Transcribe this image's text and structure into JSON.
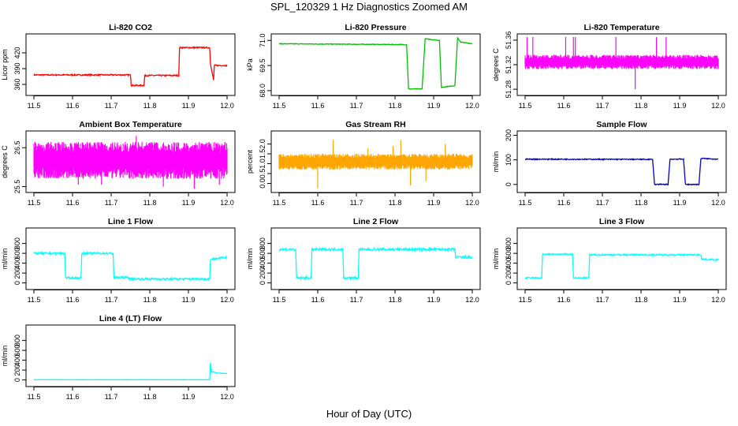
{
  "figure": {
    "title": "SPL_120329  1 Hz Diagnostics Zoomed AM",
    "xlabel": "Hour of Day (UTC)"
  },
  "chart_data": [
    {
      "type": "line",
      "title": "Li-820 CO2",
      "ylabel": "Licor ppm",
      "color": "#ff0000",
      "xlim": [
        11.5,
        12.0
      ],
      "ylim": [
        345,
        450
      ],
      "xticks": [
        "11.5",
        "11.6",
        "11.7",
        "11.8",
        "11.9",
        "12.0"
      ],
      "yticks": [
        {
          "v": 360,
          "label": "360"
        },
        {
          "v": 390,
          "label": "390"
        },
        {
          "v": 420,
          "label": "420"
        }
      ],
      "noise": 1.2,
      "series": [
        {
          "x": [
            11.5,
            11.75,
            11.752,
            11.785,
            11.787,
            11.875,
            11.877,
            11.955,
            11.957,
            11.965,
            11.967,
            12.0
          ],
          "y": [
            378,
            378,
            358,
            358,
            377,
            377,
            430,
            430,
            400,
            368,
            396,
            396
          ]
        }
      ]
    },
    {
      "type": "line",
      "title": "Li-820 Pressure",
      "ylabel": "kPa",
      "color": "#00c000",
      "xlim": [
        11.5,
        12.0
      ],
      "ylim": [
        67.9,
        71.2
      ],
      "xticks": [
        "11.5",
        "11.6",
        "11.7",
        "11.8",
        "11.9",
        "12.0"
      ],
      "yticks": [
        {
          "v": 68.0,
          "label": "68.0"
        },
        {
          "v": 69.5,
          "label": "69.5"
        },
        {
          "v": 71.0,
          "label": "71.0"
        }
      ],
      "noise": 0.02,
      "series": [
        {
          "x": [
            11.5,
            11.83,
            11.835,
            11.87,
            11.878,
            11.915,
            11.92,
            11.955,
            11.962,
            11.97,
            12.0
          ],
          "y": [
            70.8,
            70.75,
            68.1,
            68.1,
            71.1,
            71.0,
            68.2,
            68.3,
            71.15,
            70.9,
            70.8
          ]
        }
      ]
    },
    {
      "type": "band",
      "title": "Li-820 Temperature",
      "ylabel": "degrees C",
      "color": "#ff00ff",
      "xlim": [
        11.5,
        12.0
      ],
      "ylim": [
        51.275,
        51.365
      ],
      "xticks": [
        "11.5",
        "11.6",
        "11.7",
        "11.8",
        "11.9",
        "12.0"
      ],
      "yticks": [
        {
          "v": 51.28,
          "label": "51.28"
        },
        {
          "v": 51.32,
          "label": "51.32"
        },
        {
          "v": 51.36,
          "label": "51.36"
        }
      ],
      "band": [
        51.313,
        51.336
      ],
      "spikes": [
        {
          "x": 11.505,
          "y": 51.365
        },
        {
          "x": 11.52,
          "y": 51.365
        },
        {
          "x": 11.605,
          "y": 51.365
        },
        {
          "x": 11.625,
          "y": 51.365
        },
        {
          "x": 11.63,
          "y": 51.365
        },
        {
          "x": 11.735,
          "y": 51.365
        },
        {
          "x": 11.84,
          "y": 51.365
        },
        {
          "x": 11.865,
          "y": 51.365
        },
        {
          "x": 11.785,
          "y": 51.28
        }
      ]
    },
    {
      "type": "band",
      "title": "Ambient Box Temperature",
      "ylabel": "degrees C",
      "color": "#ff00ff",
      "xlim": [
        11.5,
        12.0
      ],
      "ylim": [
        25.43,
        26.85
      ],
      "xticks": [
        "11.5",
        "11.6",
        "11.7",
        "11.8",
        "11.9",
        "12.0"
      ],
      "yticks": [
        {
          "v": 25.5,
          "label": "25.5"
        },
        {
          "v": 26.5,
          "label": "26.5"
        }
      ],
      "band": [
        25.7,
        26.65
      ],
      "spikes": [
        {
          "x": 11.765,
          "y": 26.8
        },
        {
          "x": 11.615,
          "y": 25.55
        },
        {
          "x": 11.675,
          "y": 25.55
        },
        {
          "x": 11.835,
          "y": 25.5
        },
        {
          "x": 11.915,
          "y": 25.45
        },
        {
          "x": 11.98,
          "y": 25.55
        }
      ]
    },
    {
      "type": "band",
      "title": "Gas Stream RH",
      "ylabel": "percent",
      "color": "#ffa500",
      "xlim": [
        11.5,
        12.0
      ],
      "ylim": [
        -0.3,
        2.5
      ],
      "xticks": [
        "11.5",
        "11.6",
        "11.7",
        "11.8",
        "11.9",
        "12.0"
      ],
      "yticks": [
        {
          "v": 0.0,
          "label": "0.0"
        },
        {
          "v": 0.5,
          "label": "0.5"
        },
        {
          "v": 1.0,
          "label": "1.0"
        },
        {
          "v": 1.5,
          "label": "1.5"
        },
        {
          "v": 2.0,
          "label": "2.0"
        }
      ],
      "band": [
        0.7,
        1.5
      ],
      "spikes": [
        {
          "x": 11.6,
          "y": -0.25
        },
        {
          "x": 11.64,
          "y": 2.2
        },
        {
          "x": 11.73,
          "y": 1.8
        },
        {
          "x": 11.815,
          "y": 2.2
        },
        {
          "x": 11.84,
          "y": -0.1
        },
        {
          "x": 11.88,
          "y": 0.1
        },
        {
          "x": 11.93,
          "y": 2.0
        },
        {
          "x": 11.795,
          "y": 1.9
        }
      ]
    },
    {
      "type": "line",
      "title": "Sample Flow",
      "ylabel": "ml/min",
      "color": "#0000cd",
      "xlim": [
        11.5,
        12.0
      ],
      "ylim": [
        -20,
        205
      ],
      "xticks": [
        "11.5",
        "11.6",
        "11.7",
        "11.8",
        "11.9",
        "12.0"
      ],
      "yticks": [
        {
          "v": 0,
          "label": "0"
        },
        {
          "v": 100,
          "label": "100"
        },
        {
          "v": 200,
          "label": "200"
        }
      ],
      "noise": 2,
      "series": [
        {
          "x": [
            11.5,
            11.83,
            11.835,
            11.87,
            11.875,
            11.91,
            11.915,
            11.95,
            11.955,
            12.0
          ],
          "y": [
            103,
            102,
            0,
            0,
            103,
            103,
            0,
            0,
            106,
            103
          ]
        }
      ]
    },
    {
      "type": "line",
      "title": "Line 1 Flow",
      "ylabel": "ml/min",
      "color": "#00ffff",
      "xlim": [
        11.5,
        12.0
      ],
      "ylim": [
        -70,
        1050
      ],
      "xticks": [
        "11.5",
        "11.6",
        "11.7",
        "11.8",
        "11.9",
        "12.0"
      ],
      "yticks": [
        {
          "v": 0,
          "label": "0"
        },
        {
          "v": 200,
          "label": "200"
        },
        {
          "v": 400,
          "label": "400"
        },
        {
          "v": 600,
          "label": "600"
        },
        {
          "v": 800,
          "label": "800"
        }
      ],
      "noise": 20,
      "series": [
        {
          "x": [
            11.5,
            11.58,
            11.582,
            11.622,
            11.624,
            11.705,
            11.707,
            11.745,
            11.748,
            11.955,
            11.957,
            12.0
          ],
          "y": [
            600,
            600,
            100,
            100,
            600,
            600,
            110,
            110,
            80,
            80,
            480,
            520
          ]
        }
      ]
    },
    {
      "type": "line",
      "title": "Line 2 Flow",
      "ylabel": "ml/min",
      "color": "#00ffff",
      "xlim": [
        11.5,
        12.0
      ],
      "ylim": [
        -70,
        1050
      ],
      "xticks": [
        "11.5",
        "11.6",
        "11.7",
        "11.8",
        "11.9",
        "12.0"
      ],
      "yticks": [
        {
          "v": 0,
          "label": "0"
        },
        {
          "v": 200,
          "label": "200"
        },
        {
          "v": 400,
          "label": "400"
        },
        {
          "v": 600,
          "label": "600"
        },
        {
          "v": 800,
          "label": "800"
        }
      ],
      "noise": 25,
      "series": [
        {
          "x": [
            11.5,
            11.543,
            11.545,
            11.583,
            11.585,
            11.665,
            11.667,
            11.705,
            11.707,
            11.955,
            11.957,
            12.0
          ],
          "y": [
            680,
            680,
            100,
            100,
            680,
            680,
            100,
            100,
            680,
            680,
            520,
            520
          ]
        }
      ]
    },
    {
      "type": "line",
      "title": "Line 3 Flow",
      "ylabel": "ml/min",
      "color": "#00ffff",
      "xlim": [
        11.5,
        12.0
      ],
      "ylim": [
        -70,
        1050
      ],
      "xticks": [
        "11.5",
        "11.6",
        "11.7",
        "11.8",
        "11.9",
        "12.0"
      ],
      "yticks": [
        {
          "v": 0,
          "label": "0"
        },
        {
          "v": 200,
          "label": "200"
        },
        {
          "v": 400,
          "label": "400"
        },
        {
          "v": 600,
          "label": "600"
        },
        {
          "v": 800,
          "label": "800"
        }
      ],
      "noise": 15,
      "series": [
        {
          "x": [
            11.5,
            11.543,
            11.545,
            11.623,
            11.625,
            11.665,
            11.667,
            11.955,
            11.957,
            12.0
          ],
          "y": [
            100,
            100,
            580,
            580,
            100,
            100,
            570,
            570,
            480,
            470
          ]
        }
      ]
    },
    {
      "type": "line",
      "title": "Line 4 (LT) Flow",
      "ylabel": "ml/min",
      "color": "#00ffff",
      "xlim": [
        11.5,
        12.0
      ],
      "ylim": [
        -70,
        1050
      ],
      "xticks": [
        "11.5",
        "11.6",
        "11.7",
        "11.8",
        "11.9",
        "12.0"
      ],
      "yticks": [
        {
          "v": 0,
          "label": "0"
        },
        {
          "v": 200,
          "label": "200"
        },
        {
          "v": 400,
          "label": "400"
        },
        {
          "v": 600,
          "label": "600"
        },
        {
          "v": 800,
          "label": "800"
        }
      ],
      "noise": 2,
      "series": [
        {
          "x": [
            11.5,
            11.955,
            11.957,
            11.96,
            11.966,
            11.975,
            12.0
          ],
          "y": [
            5,
            5,
            350,
            160,
            160,
            140,
            130
          ]
        }
      ]
    }
  ]
}
